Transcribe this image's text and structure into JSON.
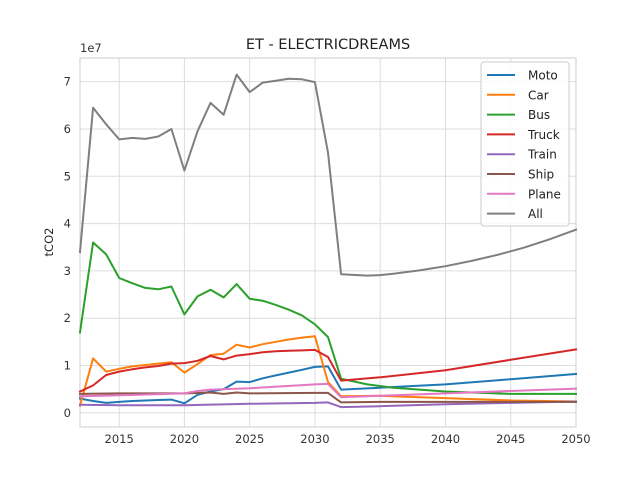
{
  "chart_data": {
    "type": "line",
    "title": "ET - ELECTRICDREAMS",
    "xlabel": "",
    "ylabel": "tCO2",
    "y_offset_text": "1e7",
    "xlim": [
      2012,
      2050
    ],
    "ylim": [
      -3000000,
      75000000
    ],
    "x_ticks": [
      2015,
      2020,
      2025,
      2030,
      2035,
      2040,
      2045,
      2050
    ],
    "y_ticks": [
      0,
      10000000,
      20000000,
      30000000,
      40000000,
      50000000,
      60000000,
      70000000
    ],
    "y_tick_labels": [
      "0",
      "1",
      "2",
      "3",
      "4",
      "5",
      "6",
      "7"
    ],
    "x_tick_labels": [
      "2015",
      "2020",
      "2025",
      "2030",
      "2035",
      "2040",
      "2045",
      "2050"
    ],
    "grid": true,
    "legend_position": "top-right",
    "series": [
      {
        "name": "Moto",
        "color": "#1f77b4",
        "x": [
          2012,
          2013,
          2014,
          2015,
          2016,
          2017,
          2018,
          2019,
          2020,
          2021,
          2022,
          2023,
          2024,
          2025,
          2026,
          2027,
          2028,
          2029,
          2030,
          2031,
          2032,
          2035,
          2040,
          2045,
          2050
        ],
        "y": [
          3000000,
          2500000,
          2100000,
          2300000,
          2500000,
          2600000,
          2700000,
          2800000,
          2000000,
          3800000,
          4500000,
          5000000,
          6600000,
          6500000,
          7300000,
          7900000,
          8500000,
          9100000,
          9700000,
          9800000,
          4900000,
          5300000,
          6000000,
          7100000,
          8200000
        ]
      },
      {
        "name": "Car",
        "color": "#ff7f0e",
        "x": [
          2012,
          2013,
          2014,
          2015,
          2016,
          2017,
          2018,
          2019,
          2020,
          2021,
          2022,
          2023,
          2024,
          2025,
          2026,
          2027,
          2028,
          2029,
          2030,
          2031,
          2032,
          2035,
          2040,
          2045,
          2050
        ],
        "y": [
          1500000,
          11500000,
          8700000,
          9300000,
          9800000,
          10100000,
          10400000,
          10700000,
          8500000,
          10300000,
          12200000,
          12500000,
          14400000,
          13800000,
          14500000,
          15000000,
          15500000,
          15900000,
          16200000,
          6500000,
          3500000,
          3600000,
          3100000,
          2600000,
          2400000
        ]
      },
      {
        "name": "Bus",
        "color": "#2ca02c",
        "x": [
          2012,
          2013,
          2014,
          2015,
          2016,
          2017,
          2018,
          2019,
          2020,
          2021,
          2022,
          2023,
          2024,
          2025,
          2026,
          2027,
          2028,
          2029,
          2030,
          2031,
          2032,
          2034,
          2036,
          2040,
          2045,
          2050
        ],
        "y": [
          17000000,
          36000000,
          33500000,
          28500000,
          27400000,
          26400000,
          26100000,
          26700000,
          20800000,
          24600000,
          26000000,
          24400000,
          27200000,
          24100000,
          23700000,
          22800000,
          21800000,
          20600000,
          18700000,
          16000000,
          7200000,
          6000000,
          5300000,
          4500000,
          4000000,
          4000000
        ]
      },
      {
        "name": "Truck",
        "color": "#d62728",
        "x": [
          2012,
          2013,
          2014,
          2015,
          2016,
          2017,
          2018,
          2019,
          2020,
          2021,
          2022,
          2023,
          2024,
          2025,
          2026,
          2027,
          2028,
          2029,
          2030,
          2031,
          2032,
          2035,
          2040,
          2045,
          2050
        ],
        "y": [
          4500000,
          5800000,
          8000000,
          8700000,
          9200000,
          9600000,
          9900000,
          10400000,
          10500000,
          11000000,
          12000000,
          11300000,
          12100000,
          12400000,
          12800000,
          13000000,
          13100000,
          13200000,
          13300000,
          11800000,
          6800000,
          7500000,
          9000000,
          11200000,
          13400000
        ]
      },
      {
        "name": "Train",
        "color": "#9467bd",
        "x": [
          2012,
          2015,
          2020,
          2025,
          2030,
          2031,
          2032,
          2035,
          2040,
          2045,
          2050
        ],
        "y": [
          1700000,
          1600000,
          1600000,
          1900000,
          2100000,
          2200000,
          1200000,
          1400000,
          1800000,
          2100000,
          2400000
        ]
      },
      {
        "name": "Ship",
        "color": "#8c564b",
        "x": [
          2012,
          2015,
          2020,
          2022,
          2023,
          2024,
          2025,
          2030,
          2031,
          2032,
          2035,
          2040,
          2045,
          2050
        ],
        "y": [
          4000000,
          4100000,
          4100000,
          4300000,
          4000000,
          4300000,
          4100000,
          4200000,
          4200000,
          2200000,
          2300000,
          2300000,
          2300000,
          2300000
        ]
      },
      {
        "name": "Plane",
        "color": "#e377c2",
        "x": [
          2012,
          2015,
          2020,
          2021,
          2022,
          2025,
          2030,
          2031,
          2032,
          2035,
          2040,
          2045,
          2050
        ],
        "y": [
          3500000,
          3700000,
          4100000,
          4600000,
          4900000,
          5200000,
          6000000,
          6100000,
          3300000,
          3600000,
          4100000,
          4600000,
          5100000
        ]
      },
      {
        "name": "All",
        "color": "#7f7f7f",
        "x": [
          2012,
          2013,
          2014,
          2015,
          2016,
          2017,
          2018,
          2019,
          2020,
          2021,
          2022,
          2023,
          2024,
          2025,
          2026,
          2027,
          2028,
          2029,
          2030,
          2031,
          2032,
          2034,
          2035,
          2036,
          2038,
          2040,
          2042,
          2044,
          2046,
          2048,
          2050
        ],
        "y": [
          34000000,
          64500000,
          61000000,
          57800000,
          58100000,
          57900000,
          58400000,
          60000000,
          51200000,
          59500000,
          65500000,
          63000000,
          71500000,
          67800000,
          69800000,
          70200000,
          70600000,
          70500000,
          69900000,
          55000000,
          29300000,
          29000000,
          29100000,
          29400000,
          30100000,
          31000000,
          32100000,
          33400000,
          34900000,
          36700000,
          38700000
        ]
      }
    ]
  }
}
